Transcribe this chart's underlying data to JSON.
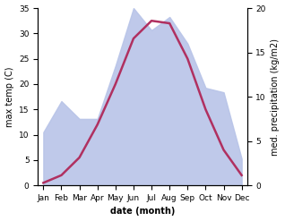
{
  "months": [
    "Jan",
    "Feb",
    "Mar",
    "Apr",
    "May",
    "Jun",
    "Jul",
    "Aug",
    "Sep",
    "Oct",
    "Nov",
    "Dec"
  ],
  "temp": [
    0.5,
    2.0,
    5.5,
    12.0,
    20.0,
    29.0,
    32.5,
    32.0,
    25.0,
    15.0,
    7.0,
    2.0
  ],
  "precip": [
    6.0,
    9.5,
    7.5,
    7.5,
    13.5,
    20.0,
    17.5,
    19.0,
    16.0,
    11.0,
    10.5,
    3.0
  ],
  "temp_color": "#b03060",
  "precip_fill_color": "#b8c4e8",
  "temp_ylim": [
    0,
    35
  ],
  "precip_ylim": [
    0,
    20
  ],
  "temp_yticks": [
    0,
    5,
    10,
    15,
    20,
    25,
    30,
    35
  ],
  "precip_yticks": [
    0,
    5,
    10,
    15,
    20
  ],
  "xlabel": "date (month)",
  "ylabel_left": "max temp (C)",
  "ylabel_right": "med. precipitation (kg/m2)",
  "bg_color": "#ffffff",
  "label_fontsize": 7,
  "tick_fontsize": 6.5,
  "scale_factor": 1.75
}
